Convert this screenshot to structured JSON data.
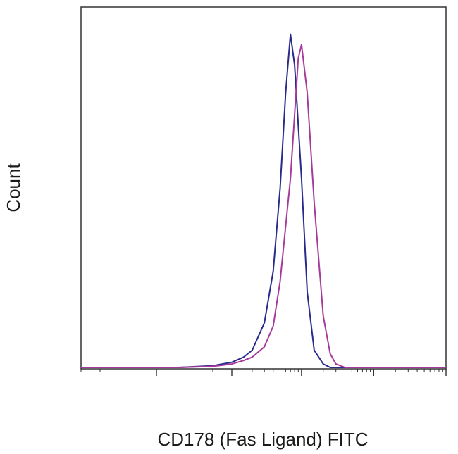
{
  "chart_data": {
    "type": "line",
    "title": "",
    "xlabel": "CD178 (Fas Ligand) FITC",
    "ylabel": "Count",
    "x_scale": "log",
    "xlim": [
      -100,
      100000
    ],
    "ylim": [
      0,
      100
    ],
    "grid": false,
    "legend": "none",
    "series": [
      {
        "color": "#2a2a8c",
        "x": [
          -100,
          10,
          50,
          100,
          150,
          200,
          300,
          400,
          500,
          600,
          700,
          800,
          1000,
          1200,
          1500,
          2000,
          2500,
          3000,
          4000,
          5000,
          100000
        ],
        "y": [
          0,
          0,
          0.5,
          1.5,
          3,
          5,
          13,
          28,
          52,
          80,
          97,
          88,
          55,
          22,
          5,
          1,
          0,
          0,
          0,
          0,
          0
        ]
      },
      {
        "color": "#a63a9a",
        "x": [
          -100,
          10,
          50,
          100,
          150,
          200,
          300,
          400,
          500,
          700,
          900,
          1000,
          1200,
          1500,
          2000,
          2500,
          3000,
          4000,
          5000,
          100000
        ],
        "y": [
          0,
          0,
          0.3,
          1,
          2,
          3,
          6,
          12,
          25,
          55,
          90,
          94,
          80,
          48,
          15,
          4,
          1,
          0,
          0,
          0
        ]
      }
    ]
  }
}
